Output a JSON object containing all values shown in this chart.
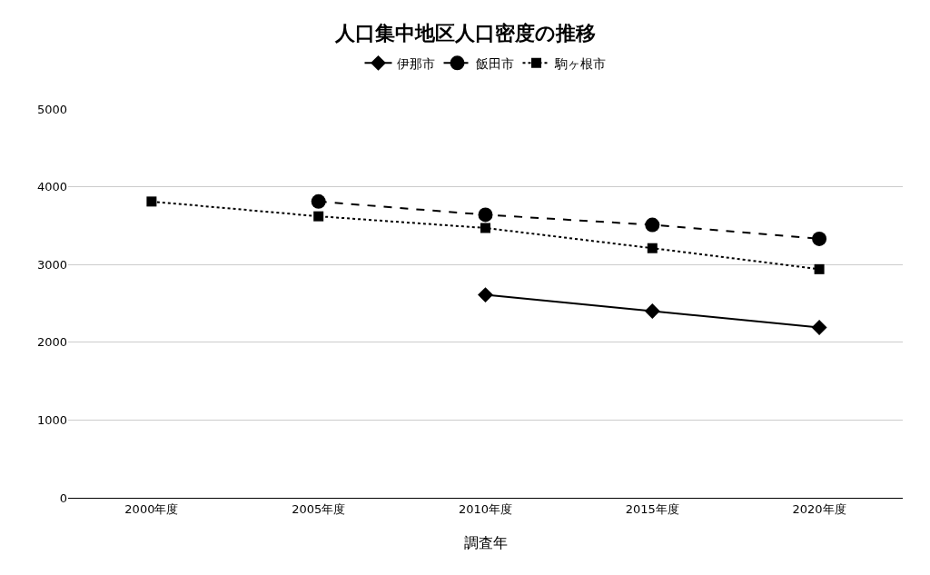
{
  "chart_data": {
    "type": "line",
    "title": "人口集中地区人口密度の推移",
    "xlabel": "調査年",
    "categories": [
      "2000年度",
      "2005年度",
      "2010年度",
      "2015年度",
      "2020年度"
    ],
    "series": [
      {
        "name": "伊那市",
        "color": "#000000",
        "marker": "diamond",
        "line_style": "solid",
        "values": [
          null,
          null,
          2610,
          2400,
          2190
        ]
      },
      {
        "name": "飯田市",
        "color": "#000000",
        "marker": "circle",
        "line_style": "dashed",
        "values": [
          null,
          3810,
          3640,
          3510,
          3330
        ]
      },
      {
        "name": "駒ヶ根市",
        "color": "#000000",
        "marker": "square",
        "line_style": "dotted",
        "values": [
          3810,
          3620,
          3470,
          3210,
          2940
        ]
      }
    ],
    "ylim": [
      0,
      5000
    ],
    "yticks": [
      0,
      1000,
      2000,
      3000,
      4000,
      5000
    ],
    "grid": "y",
    "legend": "top"
  }
}
